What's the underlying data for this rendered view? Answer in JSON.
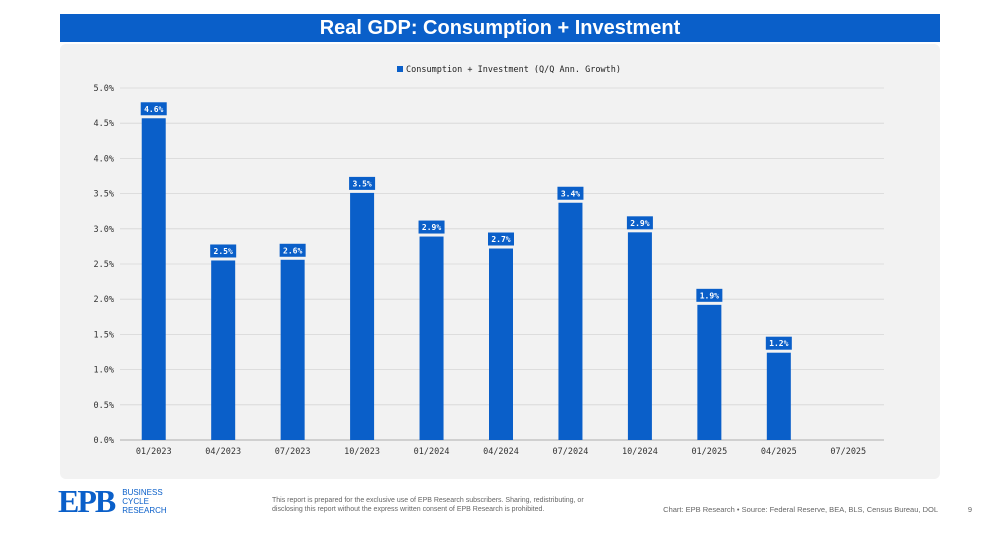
{
  "header": {
    "title": "Real GDP: Consumption + Investment"
  },
  "chart_data": {
    "type": "bar",
    "title": "",
    "legend": "Consumption + Investment (Q/Q Ann. Growth)",
    "legend_position": "top-center",
    "categories": [
      "01/2023",
      "04/2023",
      "07/2023",
      "10/2023",
      "01/2024",
      "04/2024",
      "07/2024",
      "10/2024",
      "01/2025",
      "04/2025",
      "07/2025"
    ],
    "values": [
      4.57,
      2.55,
      2.56,
      3.51,
      2.89,
      2.72,
      3.37,
      2.95,
      1.92,
      1.24,
      null
    ],
    "data_labels": [
      "4.6%",
      "2.5%",
      "2.6%",
      "3.5%",
      "2.9%",
      "2.7%",
      "3.4%",
      "2.9%",
      "1.9%",
      "1.2%",
      ""
    ],
    "yticks": [
      "0.0%",
      "0.5%",
      "1.0%",
      "1.5%",
      "2.0%",
      "2.5%",
      "3.0%",
      "3.5%",
      "4.0%",
      "4.5%",
      "5.0%"
    ],
    "ylim": [
      0,
      5
    ],
    "xlabel": "",
    "ylabel": "",
    "grid": true,
    "bar_color": "#0a5fc9"
  },
  "footer": {
    "logo": "EPB",
    "logo_lines": [
      "BUSINESS",
      "CYCLE",
      "RESEARCH"
    ],
    "disclaimer_1": "This report is prepared for the exclusive use of EPB Research subscribers. Sharing, redistributing, or",
    "disclaimer_2": "disclosing this report without the express written consent of EPB Research is prohibited.",
    "source": "Chart: EPB Research  •  Source: Federal Reserve, BEA, BLS, Census Bureau, DOL",
    "page": "9"
  }
}
